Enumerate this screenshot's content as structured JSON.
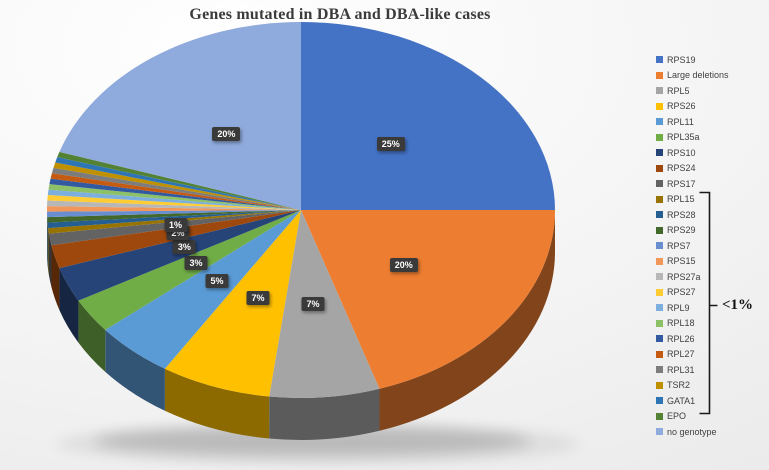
{
  "chart_data": {
    "type": "pie",
    "three_d": true,
    "title": "Genes mutated in DBA and DBA-like cases",
    "legend_position": "right",
    "start_angle_deg": 0,
    "direction": "clockwise",
    "slices": [
      {
        "label": "RPS19",
        "value": 25,
        "data_label": "25%",
        "color": "#4472C4"
      },
      {
        "label": "Large deletions",
        "value": 20,
        "data_label": "20%",
        "color": "#ED7D31"
      },
      {
        "label": "RPL5",
        "value": 7,
        "data_label": "7%",
        "color": "#A5A5A5"
      },
      {
        "label": "RPS26",
        "value": 7,
        "data_label": "7%",
        "color": "#FFC000"
      },
      {
        "label": "RPL11",
        "value": 5,
        "data_label": "5%",
        "color": "#5B9BD5"
      },
      {
        "label": "RPL35a",
        "value": 3,
        "data_label": "3%",
        "color": "#70AD47"
      },
      {
        "label": "RPS10",
        "value": 3,
        "data_label": "3%",
        "color": "#264478"
      },
      {
        "label": "RPS24",
        "value": 2,
        "data_label": "2%",
        "color": "#9E480E"
      },
      {
        "label": "RPS17",
        "value": 1,
        "data_label": "1%",
        "color": "#636363"
      },
      {
        "label": "RPL15",
        "value": 0.4667,
        "data_label": "",
        "color": "#997300"
      },
      {
        "label": "RPS28",
        "value": 0.4667,
        "data_label": "",
        "color": "#255E91"
      },
      {
        "label": "RPS29",
        "value": 0.4667,
        "data_label": "",
        "color": "#43682B"
      },
      {
        "label": "RPS7",
        "value": 0.4667,
        "data_label": "",
        "color": "#698ED0"
      },
      {
        "label": "RPS15",
        "value": 0.4667,
        "data_label": "",
        "color": "#F1975A"
      },
      {
        "label": "RPS27a",
        "value": 0.4667,
        "data_label": "",
        "color": "#B7B7B7"
      },
      {
        "label": "RPS27",
        "value": 0.4667,
        "data_label": "",
        "color": "#FFCD33"
      },
      {
        "label": "RPL9",
        "value": 0.4667,
        "data_label": "",
        "color": "#7CAFDD"
      },
      {
        "label": "RPL18",
        "value": 0.4667,
        "data_label": "",
        "color": "#8CC168"
      },
      {
        "label": "RPL26",
        "value": 0.4667,
        "data_label": "",
        "color": "#335AA1"
      },
      {
        "label": "RPL27",
        "value": 0.4667,
        "data_label": "",
        "color": "#C55A11"
      },
      {
        "label": "RPL31",
        "value": 0.4667,
        "data_label": "",
        "color": "#7C7C7C"
      },
      {
        "label": "TSR2",
        "value": 0.4667,
        "data_label": "",
        "color": "#BF9000"
      },
      {
        "label": "GATA1",
        "value": 0.4667,
        "data_label": "",
        "color": "#2E75B6"
      },
      {
        "label": "EPO",
        "value": 0.4667,
        "data_label": "",
        "color": "#548235"
      },
      {
        "label": "no genotype",
        "value": 20,
        "data_label": "20%",
        "color": "#8FAADC"
      }
    ],
    "annotation": {
      "text": "<1%",
      "applies_to_legend_items": [
        "RPL15",
        "RPS28",
        "RPS29",
        "RPS7",
        "RPS15",
        "RPS27a",
        "RPS27",
        "RPL9",
        "RPL18",
        "RPL26",
        "RPL27",
        "RPL31",
        "TSR2",
        "GATA1",
        "EPO"
      ]
    },
    "colors": {
      "data_label_box": "#3A3A3A",
      "data_label_text": "#FFFFFF",
      "title_color": "#3B3B3B",
      "legend_text": "#404040",
      "annotation_color": "#111111"
    }
  }
}
